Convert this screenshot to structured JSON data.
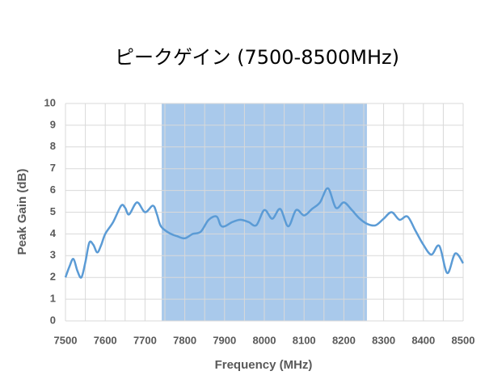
{
  "chart_data": {
    "type": "line",
    "title": "ピークゲイン (7500-8500MHz)",
    "x_label": "Frequency (MHz)",
    "y_label": "Peak Gain (dB)",
    "x": [
      7500,
      7510,
      7520,
      7530,
      7540,
      7550,
      7560,
      7570,
      7580,
      7590,
      7600,
      7620,
      7640,
      7650,
      7660,
      7680,
      7700,
      7720,
      7730,
      7740,
      7760,
      7780,
      7800,
      7820,
      7840,
      7860,
      7880,
      7890,
      7900,
      7920,
      7940,
      7960,
      7980,
      8000,
      8020,
      8040,
      8060,
      8080,
      8100,
      8120,
      8140,
      8160,
      8180,
      8200,
      8220,
      8240,
      8260,
      8280,
      8300,
      8320,
      8340,
      8360,
      8380,
      8400,
      8420,
      8440,
      8460,
      8480,
      8500
    ],
    "series": [
      {
        "color": "#5b9bd5",
        "values": [
          2.0,
          2.5,
          2.85,
          2.3,
          2.0,
          2.7,
          3.6,
          3.5,
          3.15,
          3.5,
          4.0,
          4.55,
          5.3,
          5.2,
          4.9,
          5.45,
          5.0,
          5.3,
          4.9,
          4.35,
          4.05,
          3.9,
          3.8,
          4.0,
          4.1,
          4.65,
          4.8,
          4.4,
          4.35,
          4.55,
          4.65,
          4.55,
          4.4,
          5.1,
          4.7,
          5.15,
          4.35,
          5.1,
          4.85,
          5.15,
          5.45,
          6.1,
          5.2,
          5.45,
          5.1,
          4.7,
          4.45,
          4.4,
          4.7,
          5.0,
          4.65,
          4.8,
          4.15,
          3.5,
          3.05,
          3.45,
          2.2,
          3.1,
          2.65
        ]
      }
    ],
    "band": [
      7742,
      8258
    ],
    "band_color": "#a9c9eb",
    "xlim": [
      7500,
      8500
    ],
    "xticks": [
      7500,
      7600,
      7700,
      7800,
      7900,
      8000,
      8100,
      8200,
      8300,
      8400,
      8500
    ],
    "x_minor_grid": [
      7550,
      7650,
      7750,
      7850,
      7950,
      8050,
      8150,
      8250,
      8350,
      8450
    ],
    "ylim": [
      0,
      10
    ],
    "yticks": [
      0,
      1,
      2,
      3,
      4,
      5,
      6,
      7,
      8,
      9,
      10
    ],
    "grid": true
  }
}
